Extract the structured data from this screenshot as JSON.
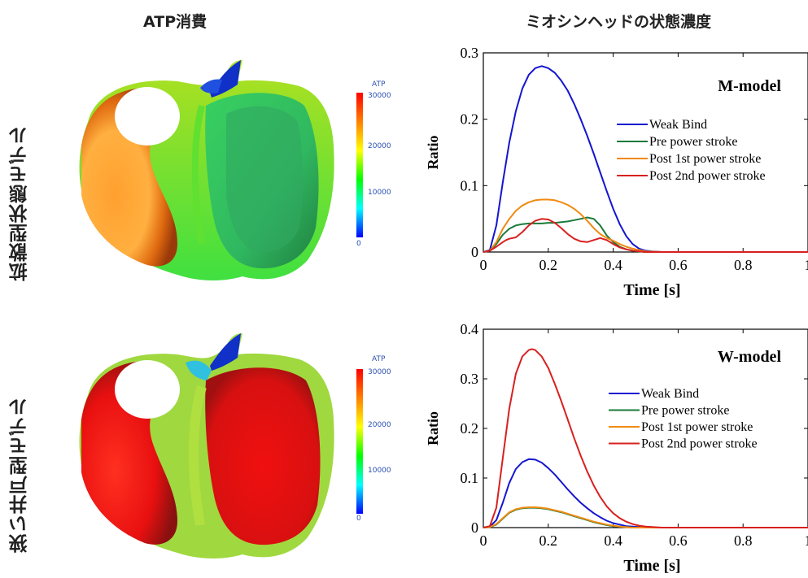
{
  "titles": {
    "atp": "ATP消費",
    "myosin": "ミオシンヘッドの状態濃度",
    "row_top": "拡散型状態モデル",
    "row_bottom": "狭い井戸型モデル"
  },
  "colorbar": {
    "label": "ATP",
    "ticks": [
      "30000",
      "20000",
      "10000",
      "0"
    ],
    "colors": [
      "#ff0000",
      "#ff8000",
      "#ffff00",
      "#00ff00",
      "#00ffff",
      "#0000ff"
    ]
  },
  "heart_top": {
    "ATP_level": "medium",
    "dominant_colors": [
      "#ff9a2e",
      "#30d060",
      "#1030c0"
    ]
  },
  "heart_bottom": {
    "ATP_level": "high",
    "dominant_colors": [
      "#e81010",
      "#a0e060",
      "#1030c0"
    ]
  },
  "chart_data": [
    {
      "type": "line",
      "annotation": "M-model",
      "xlabel": "Time [s]",
      "ylabel": "Ratio",
      "xlim": [
        0,
        1
      ],
      "ylim": [
        0,
        0.3
      ],
      "xticks": [
        "0",
        "0.2",
        "0.4",
        "0.6",
        "0.8",
        "1"
      ],
      "yticks": [
        "0",
        "0.1",
        "0.2",
        "0.3"
      ],
      "legend_position": "right",
      "series": [
        {
          "name": "Weak Bind",
          "color": "#1515d0",
          "x": [
            0,
            0.02,
            0.04,
            0.06,
            0.08,
            0.1,
            0.12,
            0.14,
            0.16,
            0.18,
            0.2,
            0.22,
            0.24,
            0.26,
            0.28,
            0.3,
            0.32,
            0.34,
            0.36,
            0.38,
            0.4,
            0.42,
            0.44,
            0.46,
            0.48,
            0.5,
            0.52,
            0.55,
            0.6,
            0.7,
            1.0
          ],
          "y": [
            0,
            0.003,
            0.04,
            0.105,
            0.165,
            0.212,
            0.246,
            0.267,
            0.277,
            0.28,
            0.277,
            0.27,
            0.258,
            0.243,
            0.223,
            0.2,
            0.175,
            0.148,
            0.12,
            0.092,
            0.065,
            0.042,
            0.024,
            0.012,
            0.005,
            0.002,
            0.001,
            0,
            0,
            0,
            0
          ]
        },
        {
          "name": "Pre power stroke",
          "color": "#1a7a3a",
          "x": [
            0,
            0.02,
            0.04,
            0.06,
            0.08,
            0.1,
            0.12,
            0.14,
            0.16,
            0.18,
            0.2,
            0.22,
            0.24,
            0.26,
            0.28,
            0.3,
            0.32,
            0.34,
            0.36,
            0.38,
            0.4,
            0.42,
            0.44,
            0.46,
            0.5,
            0.55,
            1.0
          ],
          "y": [
            0,
            0.002,
            0.012,
            0.026,
            0.035,
            0.04,
            0.042,
            0.043,
            0.043,
            0.043,
            0.044,
            0.044,
            0.045,
            0.046,
            0.048,
            0.05,
            0.052,
            0.05,
            0.04,
            0.025,
            0.015,
            0.008,
            0.004,
            0.002,
            0,
            0,
            0
          ]
        },
        {
          "name": "Post 1st power stroke",
          "color": "#f08a10",
          "x": [
            0,
            0.02,
            0.04,
            0.06,
            0.08,
            0.1,
            0.12,
            0.14,
            0.16,
            0.18,
            0.2,
            0.22,
            0.24,
            0.26,
            0.28,
            0.3,
            0.32,
            0.34,
            0.36,
            0.38,
            0.4,
            0.42,
            0.44,
            0.46,
            0.48,
            0.5,
            0.55,
            1.0
          ],
          "y": [
            0,
            0.002,
            0.015,
            0.035,
            0.05,
            0.062,
            0.07,
            0.075,
            0.078,
            0.079,
            0.079,
            0.078,
            0.075,
            0.071,
            0.065,
            0.057,
            0.047,
            0.036,
            0.027,
            0.021,
            0.017,
            0.012,
            0.008,
            0.005,
            0.003,
            0.001,
            0,
            0
          ]
        },
        {
          "name": "Post 2nd power stroke",
          "color": "#d82020",
          "x": [
            0,
            0.02,
            0.04,
            0.06,
            0.07,
            0.08,
            0.1,
            0.12,
            0.14,
            0.16,
            0.18,
            0.2,
            0.22,
            0.24,
            0.26,
            0.28,
            0.3,
            0.32,
            0.34,
            0.36,
            0.38,
            0.4,
            0.42,
            0.44,
            0.46,
            0.5,
            0.55,
            1.0
          ],
          "y": [
            0,
            0.002,
            0.008,
            0.015,
            0.018,
            0.02,
            0.022,
            0.03,
            0.04,
            0.047,
            0.05,
            0.049,
            0.044,
            0.036,
            0.027,
            0.02,
            0.016,
            0.015,
            0.018,
            0.021,
            0.018,
            0.012,
            0.007,
            0.004,
            0.002,
            0,
            0,
            0
          ]
        }
      ]
    },
    {
      "type": "line",
      "annotation": "W-model",
      "xlabel": "Time [s]",
      "ylabel": "Ratio",
      "xlim": [
        0,
        1
      ],
      "ylim": [
        0,
        0.4
      ],
      "xticks": [
        "0",
        "0.2",
        "0.4",
        "0.6",
        "0.8",
        "1"
      ],
      "yticks": [
        "0",
        "0.1",
        "0.2",
        "0.3",
        "0.4"
      ],
      "legend_position": "right",
      "series": [
        {
          "name": "Weak Bind",
          "color": "#1515d0",
          "x": [
            0,
            0.02,
            0.04,
            0.06,
            0.08,
            0.1,
            0.12,
            0.14,
            0.16,
            0.18,
            0.2,
            0.22,
            0.24,
            0.26,
            0.28,
            0.3,
            0.32,
            0.34,
            0.36,
            0.38,
            0.4,
            0.42,
            0.44,
            0.46,
            0.48,
            0.5,
            0.55,
            0.6,
            1.0
          ],
          "y": [
            0,
            0.002,
            0.015,
            0.05,
            0.09,
            0.118,
            0.132,
            0.138,
            0.137,
            0.131,
            0.12,
            0.107,
            0.092,
            0.077,
            0.063,
            0.05,
            0.039,
            0.029,
            0.021,
            0.014,
            0.009,
            0.006,
            0.003,
            0.002,
            0.001,
            0,
            0,
            0,
            0
          ]
        },
        {
          "name": "Pre power stroke",
          "color": "#1a7a3a",
          "x": [
            0,
            0.02,
            0.04,
            0.06,
            0.08,
            0.1,
            0.12,
            0.14,
            0.16,
            0.18,
            0.2,
            0.22,
            0.24,
            0.26,
            0.28,
            0.3,
            0.32,
            0.34,
            0.36,
            0.38,
            0.4,
            0.42,
            0.44,
            0.46,
            0.5,
            1.0
          ],
          "y": [
            0,
            0.001,
            0.006,
            0.018,
            0.03,
            0.036,
            0.039,
            0.04,
            0.04,
            0.039,
            0.037,
            0.034,
            0.031,
            0.027,
            0.023,
            0.019,
            0.015,
            0.011,
            0.008,
            0.005,
            0.003,
            0.002,
            0.001,
            0,
            0,
            0
          ]
        },
        {
          "name": "Post 1st power stroke",
          "color": "#f08a10",
          "x": [
            0,
            0.02,
            0.04,
            0.06,
            0.08,
            0.1,
            0.12,
            0.14,
            0.16,
            0.18,
            0.2,
            0.22,
            0.24,
            0.26,
            0.28,
            0.3,
            0.32,
            0.34,
            0.36,
            0.38,
            0.4,
            0.42,
            0.44,
            0.46,
            0.5,
            1.0
          ],
          "y": [
            0,
            0.001,
            0.007,
            0.019,
            0.031,
            0.037,
            0.04,
            0.041,
            0.041,
            0.04,
            0.038,
            0.035,
            0.032,
            0.028,
            0.024,
            0.02,
            0.016,
            0.012,
            0.009,
            0.006,
            0.004,
            0.002,
            0.001,
            0,
            0,
            0
          ]
        },
        {
          "name": "Post 2nd power stroke",
          "color": "#d82020",
          "x": [
            0,
            0.02,
            0.04,
            0.06,
            0.08,
            0.1,
            0.12,
            0.14,
            0.15,
            0.16,
            0.18,
            0.2,
            0.22,
            0.24,
            0.26,
            0.28,
            0.3,
            0.32,
            0.34,
            0.36,
            0.38,
            0.4,
            0.42,
            0.44,
            0.46,
            0.48,
            0.5,
            0.55,
            0.6,
            1.0
          ],
          "y": [
            0,
            0.003,
            0.04,
            0.14,
            0.24,
            0.31,
            0.345,
            0.358,
            0.36,
            0.358,
            0.345,
            0.322,
            0.29,
            0.255,
            0.218,
            0.18,
            0.145,
            0.113,
            0.085,
            0.062,
            0.043,
            0.029,
            0.019,
            0.012,
            0.007,
            0.004,
            0.002,
            0,
            0,
            0
          ]
        }
      ]
    }
  ]
}
